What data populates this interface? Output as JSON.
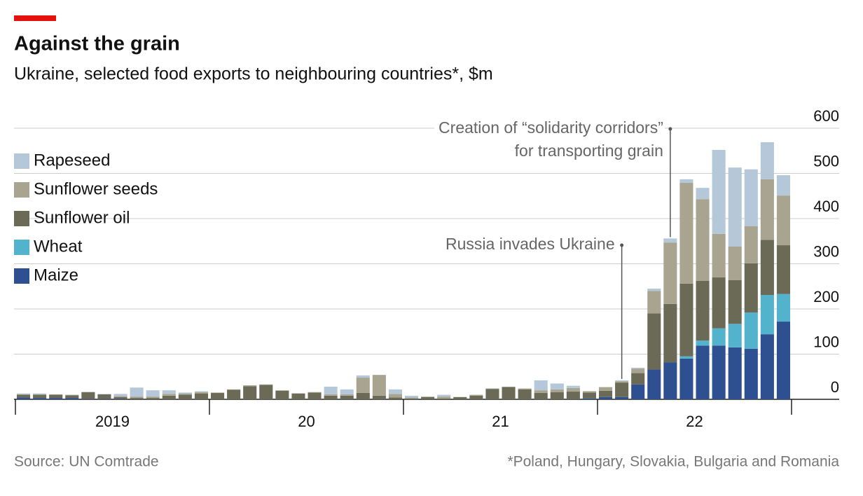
{
  "chart_data": {
    "type": "stacked_bar",
    "title": "Against the grain",
    "subtitle": "Ukraine, selected food exports to neighbouring countries*, $m",
    "source": "Source: UN Comtrade",
    "footnote": "*Poland, Hungary, Slovakia, Bulgaria and Romania",
    "year_labels": [
      "2019",
      "20",
      "21",
      "22"
    ],
    "ylim": [
      0,
      600
    ],
    "yticks": [
      0,
      100,
      200,
      300,
      400,
      500,
      600
    ],
    "grid": true,
    "legend": "left",
    "series": [
      {
        "name": "Maize",
        "color": "#2e5090",
        "values": [
          4,
          3,
          3,
          3,
          1,
          1,
          1,
          0,
          0,
          0,
          0,
          0,
          0,
          0,
          0,
          0,
          0,
          0,
          0,
          0,
          0,
          0,
          0,
          0,
          0,
          0,
          0,
          0,
          0,
          0,
          0,
          0,
          0,
          0,
          0,
          2,
          5,
          5,
          33,
          66,
          82,
          90,
          119,
          119,
          115,
          112,
          144,
          172
        ]
      },
      {
        "name": "Wheat",
        "color": "#53b3cc",
        "values": [
          0,
          0,
          0,
          0,
          0,
          0,
          0,
          0,
          0,
          0,
          0,
          0,
          0,
          0,
          0,
          0,
          0,
          0,
          0,
          0,
          0,
          0,
          0,
          0,
          0,
          0,
          0,
          0,
          0,
          0,
          0,
          0,
          0,
          0,
          0,
          0,
          0,
          0,
          0,
          0,
          0,
          5,
          11,
          38,
          52,
          80,
          87,
          61
        ]
      },
      {
        "name": "Sunflower oil",
        "color": "#6b6a57",
        "values": [
          6,
          7,
          7,
          6,
          15,
          10,
          4,
          3,
          3,
          8,
          10,
          13,
          14,
          21,
          29,
          32,
          19,
          13,
          15,
          8,
          8,
          14,
          8,
          4,
          2,
          5,
          2,
          5,
          8,
          23,
          27,
          22,
          14,
          16,
          17,
          13,
          14,
          32,
          25,
          124,
          129,
          161,
          132,
          113,
          97,
          109,
          122,
          108
        ]
      },
      {
        "name": "Sunflower seeds",
        "color": "#a8a48f",
        "values": [
          1,
          1,
          1,
          1,
          0,
          0,
          2,
          3,
          3,
          4,
          3,
          3,
          1,
          1,
          2,
          1,
          1,
          0,
          1,
          3,
          3,
          34,
          46,
          8,
          2,
          1,
          4,
          0,
          2,
          1,
          1,
          2,
          6,
          6,
          8,
          3,
          8,
          3,
          10,
          50,
          136,
          223,
          181,
          96,
          74,
          82,
          134,
          110
        ]
      },
      {
        "name": "Rapeseed",
        "color": "#b5c8d9",
        "values": [
          2,
          2,
          0,
          0,
          0,
          1,
          5,
          20,
          14,
          8,
          2,
          2,
          0,
          0,
          0,
          0,
          0,
          0,
          0,
          17,
          11,
          5,
          0,
          10,
          4,
          0,
          4,
          0,
          0,
          0,
          0,
          0,
          22,
          13,
          5,
          0,
          0,
          2,
          2,
          5,
          9,
          8,
          25,
          186,
          175,
          126,
          82,
          45
        ]
      }
    ],
    "annotations": [
      {
        "index": 37,
        "text": [
          "Russia invades Ukraine"
        ]
      },
      {
        "index": 40,
        "text": [
          "Creation of “solidarity corridors”",
          "for transporting grain"
        ]
      }
    ]
  }
}
